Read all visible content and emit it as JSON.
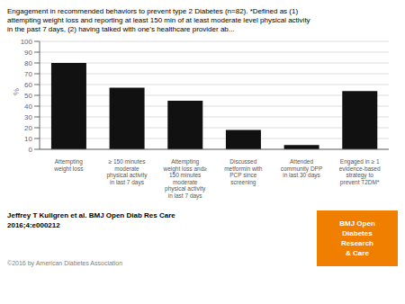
{
  "chart_data": {
    "type": "bar",
    "title": "Engagement in recommended behaviors to prevent type 2 Diabetes (n=82). *Defined as (1)\nattempting weight loss and reporting at least 150 min of at least moderate level physical activity\nin the past 7 days, (2) having talked with one’s healthcare provider ab...",
    "ylabel": "%",
    "categories": [
      "Attempting\nweight loss",
      "≥ 150 minutes\nmoderate\nphysical activity\nin last 7 days",
      "Attempting\nweight loss and≥\n150 minutes\nmoderate\nphysical activity\nin last 7 days",
      "Discussed\nmetformin with\nPCP since\nscreening",
      "Attended\ncommunity DPP\nin last 30 days",
      "Engaged in ≥ 1\nevidence-based\nstrategy to\nprevent T2DM*"
    ],
    "values": [
      80,
      57,
      45,
      18,
      4,
      54
    ],
    "color": "#111111",
    "ylim": [
      0,
      100
    ],
    "yticks": [
      0,
      10,
      20,
      30,
      40,
      50,
      60,
      70,
      80,
      90,
      100
    ],
    "grid": true,
    "annotations": [
      {
        "text": "Jeffrey T Kullgren et al. BMJ Open Diab Res Care\n2016;4:e000212"
      },
      {
        "text": "©2016 by American Diabetes Association"
      },
      {
        "text": "BMJ Open\nDiabetes\nResearch\n& Care",
        "color": "#F07F00"
      }
    ]
  }
}
